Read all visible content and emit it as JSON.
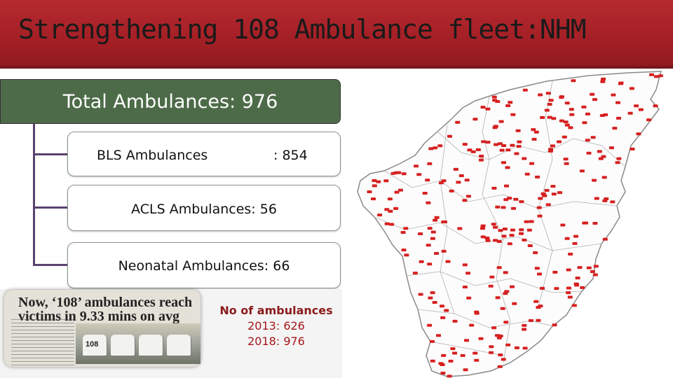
{
  "slide": {
    "title": "Strengthening 108 Ambulance fleet:NHM",
    "colors": {
      "title_bar": "#a31f25",
      "root_box": "#4d6b48",
      "connector": "#5a4270",
      "count_text": "#a4161a"
    }
  },
  "hierarchy": {
    "root": {
      "label": "Total Ambulances: 976"
    },
    "children": [
      {
        "label": "BLS Ambulances",
        "value": ": 854"
      },
      {
        "label": "ACLS Ambulances:  56"
      },
      {
        "label": "Neonatal Ambulances:  66"
      }
    ]
  },
  "news_clipping": {
    "headline": "Now, ‘108’ ambulances reach victims in 9.33 mins on avg",
    "vehicle_marking": "108"
  },
  "ambulance_counts": {
    "title": "No of ambulances",
    "lines": [
      "2013: 626",
      "2018: 976"
    ]
  },
  "map": {
    "icon": "ambulance-marker-icon",
    "marker_color": "#d62020",
    "boundary_color": "#8a8a8a"
  }
}
